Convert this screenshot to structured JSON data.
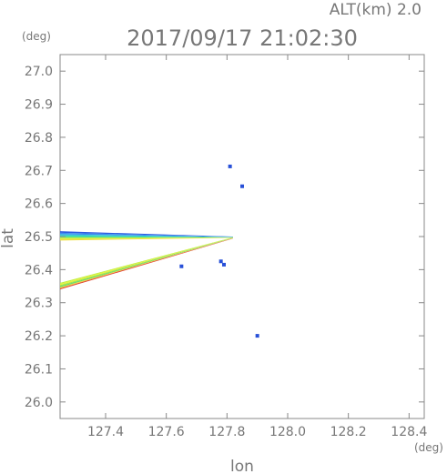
{
  "chart_data": {
    "type": "scatter",
    "title": "2017/09/17 21:02:30",
    "subtitle": "ALT(km) 2.0",
    "xlabel": "lon",
    "ylabel": "lat",
    "x_unit": "(deg)",
    "y_unit": "(deg)",
    "xlim": [
      127.25,
      128.45
    ],
    "ylim": [
      25.95,
      27.05
    ],
    "x_ticks": [
      127.4,
      127.6,
      127.8,
      128.0,
      128.2,
      128.4
    ],
    "y_ticks": [
      26.0,
      26.1,
      26.2,
      26.3,
      26.4,
      26.5,
      26.6,
      26.7,
      26.8,
      26.9,
      27.0
    ],
    "grid": false,
    "series": [
      {
        "color": "#2850d8",
        "points": [
          [
            127.81,
            26.712
          ],
          [
            127.9,
            26.2
          ],
          [
            127.78,
            26.425
          ],
          [
            127.79,
            26.415
          ],
          [
            127.85,
            26.652
          ],
          [
            127.65,
            26.41
          ]
        ]
      }
    ],
    "bands": [
      {
        "shape": "upper-streak",
        "x": [
          127.25,
          127.82
        ],
        "y_top": [
          26.516,
          26.5
        ],
        "y_bottom": [
          26.488,
          26.496
        ],
        "colors": [
          "#2d5be0",
          "#3c8cf0",
          "#33c8d8",
          "#48e090",
          "#c8f048",
          "#f0e040"
        ]
      },
      {
        "shape": "lower-streak",
        "x": [
          127.25,
          127.82
        ],
        "y_top": [
          26.36,
          26.498
        ],
        "y_bottom": [
          26.34,
          26.494
        ],
        "colors": [
          "#c0f040",
          "#e8f038",
          "#a0e840",
          "#60d870",
          "#f0d040",
          "#e04030"
        ]
      }
    ]
  }
}
